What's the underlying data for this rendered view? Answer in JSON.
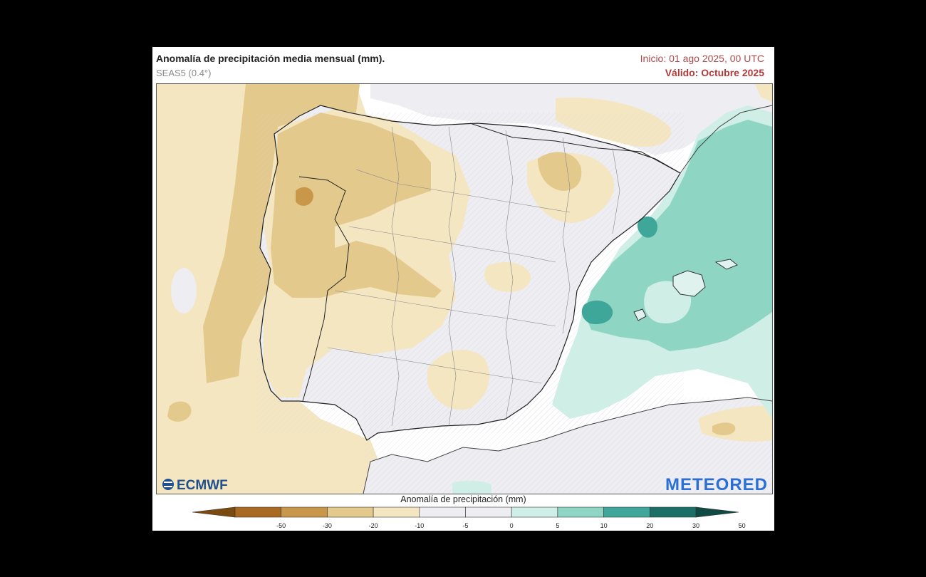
{
  "header": {
    "title": "Anomalía de precipitación media mensual (mm).",
    "subtitle": "SEAS5 (0.4°)",
    "init": "Inicio: 01 ago 2025, 00 UTC",
    "valid": "Válido: Octubre 2025"
  },
  "logos": {
    "left": "ECMWF",
    "right": "METEORED"
  },
  "colorbar": {
    "title": "Anomalía de precipitación (mm)",
    "ticks": [
      "-50",
      "-30",
      "-20",
      "-10",
      "-5",
      "0",
      "5",
      "10",
      "20",
      "30",
      "50"
    ],
    "colors": [
      "#7a4a0f",
      "#a86a20",
      "#c9974a",
      "#e4c98c",
      "#f5e6c2",
      "#ededf2",
      "#ededf2",
      "#cfeee5",
      "#8fd5c4",
      "#3fa69a",
      "#1c6f67",
      "#0f4a44"
    ]
  },
  "colors": {
    "land": "#ededf2",
    "sea": "#ffffff",
    "dry_light": "#f5e6c2",
    "dry_mid": "#e4c98c",
    "dry_strong": "#c9974a",
    "dry_extreme": "#a86a20",
    "wet_light": "#cfeee5",
    "wet_mid": "#8fd5c4",
    "wet_strong": "#3fa69a"
  }
}
